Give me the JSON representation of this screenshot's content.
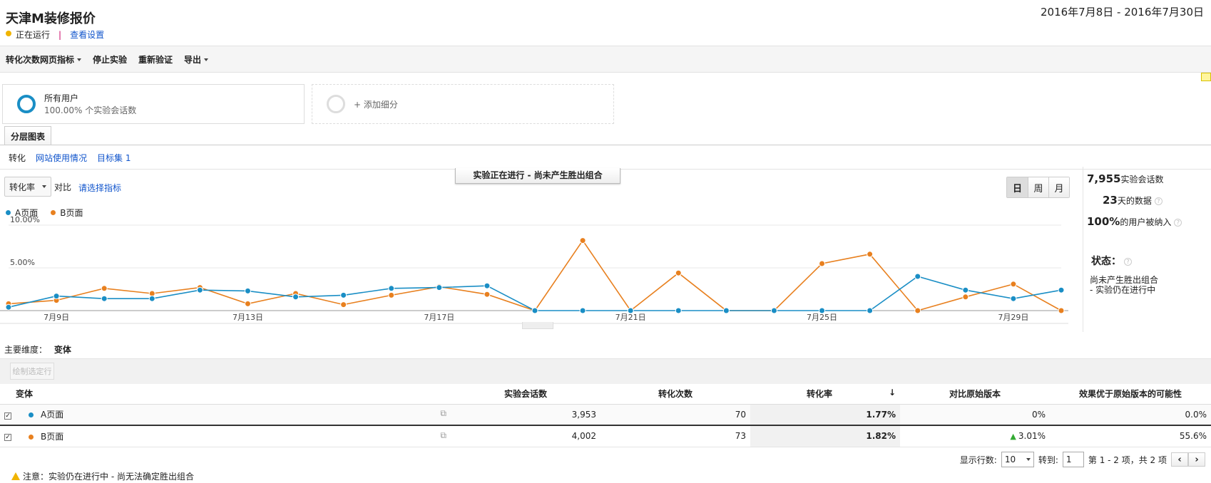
{
  "header": {
    "title": "天津M装修报价",
    "date_range": "2016年7月8日 - 2016年7月30日",
    "status": "正在运行",
    "separator": "|",
    "view_settings": "查看设置"
  },
  "toolbar": {
    "metric_menu": "转化次数网页指标",
    "stop": "停止实验",
    "revalidate": "重新验证",
    "export": "导出"
  },
  "segments": {
    "all_users_title": "所有用户",
    "all_users_sub": "100.00% 个实验会话数",
    "add_segment": "+ 添加细分"
  },
  "tab": {
    "label": "分层图表"
  },
  "subtabs": {
    "conversion": "转化",
    "site_usage": "网站使用情况",
    "goal_set": "目标集 1"
  },
  "chart_controls": {
    "metric": "转化率",
    "vs": "对比",
    "choose_metric": "请选择指标",
    "banner": "实验正在进行 - 尚未产生胜出组合",
    "day": "日",
    "week": "周",
    "month": "月"
  },
  "colors": {
    "a": "#1a8ec5",
    "b": "#e8801f"
  },
  "stats": {
    "sessions_value": "7,955",
    "sessions_label": "实验会话数",
    "days_value": "23",
    "days_label": "天的数据",
    "users_value": "100%",
    "users_label": "的用户被纳入",
    "status_title": "状态：",
    "status_line1": "尚未产生胜出组合",
    "status_line2": "- 实验仍在进行中"
  },
  "chart_data": {
    "type": "line",
    "x": [
      "7月8日",
      "7月9日",
      "7月10日",
      "7月11日",
      "7月12日",
      "7月13日",
      "7月14日",
      "7月15日",
      "7月16日",
      "7月17日",
      "7月18日",
      "7月19日",
      "7月20日",
      "7月21日",
      "7月22日",
      "7月23日",
      "7月24日",
      "7月25日",
      "7月26日",
      "7月27日",
      "7月28日",
      "7月29日",
      "7月30日"
    ],
    "x_tick_labels": [
      "7月9日",
      "7月13日",
      "7月17日",
      "7月21日",
      "7月25日",
      "7月29日"
    ],
    "y_tick_labels": [
      "10.00%",
      "5.00%"
    ],
    "ylim": [
      0,
      10
    ],
    "grid": true,
    "legend": "top-left",
    "series": [
      {
        "name": "A页面",
        "values": [
          0.4,
          1.7,
          1.4,
          1.4,
          2.4,
          2.3,
          1.6,
          1.8,
          2.6,
          2.7,
          2.9,
          0,
          0,
          0,
          0,
          0,
          0,
          0,
          0,
          4.0,
          2.4,
          1.4,
          2.4
        ]
      },
      {
        "name": "B页面",
        "values": [
          0.8,
          1.2,
          2.6,
          2.0,
          2.7,
          0.8,
          2.0,
          0.7,
          1.8,
          2.8,
          1.9,
          0,
          8.2,
          0,
          4.4,
          0,
          0,
          5.5,
          6.6,
          0,
          1.6,
          3.1,
          0
        ]
      }
    ]
  },
  "dimension": {
    "label": "主要维度：",
    "value": "变体"
  },
  "plot_rows_button": "绘制选定行",
  "table": {
    "headers": {
      "variant": "变体",
      "sessions": "实验会话数",
      "conversions": "转化次数",
      "rate": "转化率",
      "vs_original": "对比原始版本",
      "probability": "效果优于原始版本的可能性"
    },
    "sort_arrow": "↓",
    "rows": [
      {
        "name": "A页面",
        "sessions": "3,953",
        "conversions": "70",
        "rate": "1.77%",
        "vs": "0%",
        "prob": "0.0%"
      },
      {
        "name": "B页面",
        "sessions": "4,002",
        "conversions": "73",
        "rate": "1.82%",
        "vs": "3.01%",
        "prob": "55.6%"
      }
    ]
  },
  "pager": {
    "rows_label": "显示行数:",
    "rows_value": "10",
    "goto_label": "转到:",
    "goto_value": "1",
    "range_text": "第 1 - 2 项，共 2 项"
  },
  "note": "注意：实验仍在进行中 - 尚无法确定胜出组合"
}
